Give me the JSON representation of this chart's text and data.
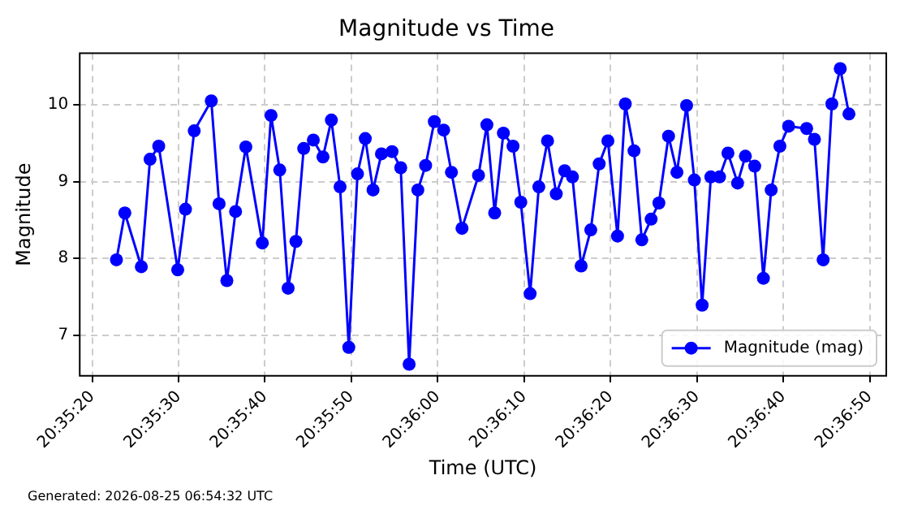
{
  "chart_data": {
    "type": "line",
    "title": "Magnitude vs Time",
    "xlabel": "Time (UTC)",
    "ylabel": "Magnitude",
    "annotations": [
      "Generated: 2026-08-25 06:54:32 UTC"
    ],
    "x": [
      20.58967,
      20.58994,
      20.59047,
      20.59075,
      20.59103,
      20.59164,
      20.59189,
      20.59217,
      20.59272,
      20.59297,
      20.59322,
      20.5935,
      20.59383,
      20.59436,
      20.59464,
      20.59492,
      20.59519,
      20.59544,
      20.59569,
      20.596,
      20.59631,
      20.59658,
      20.59686,
      20.59714,
      20.59742,
      20.59767,
      20.59792,
      20.59819,
      20.59853,
      20.59881,
      20.59908,
      20.59936,
      20.59961,
      20.59989,
      20.60019,
      20.60044,
      20.60078,
      20.60131,
      20.60158,
      20.60183,
      20.60211,
      20.60242,
      20.60267,
      20.60297,
      20.60325,
      20.60353,
      20.60381,
      20.60408,
      20.60433,
      20.60461,
      20.60492,
      20.60519,
      20.60547,
      20.60578,
      20.60603,
      20.60631,
      20.60656,
      20.60686,
      20.60711,
      20.60742,
      20.60769,
      20.608,
      20.60825,
      20.6085,
      20.60878,
      20.60906,
      20.60933,
      20.60964,
      20.60989,
      20.61019,
      20.61047,
      20.61072,
      20.611,
      20.61128,
      20.61186,
      20.61211,
      20.61239,
      20.61267,
      20.61294,
      20.61322
    ],
    "series": [
      {
        "name": "Magnitude (mag)",
        "color": "#0000ff",
        "values": [
          7.98,
          8.59,
          7.89,
          9.29,
          9.46,
          7.85,
          8.64,
          9.66,
          10.05,
          8.71,
          7.71,
          8.61,
          9.45,
          8.2,
          9.86,
          9.15,
          7.61,
          8.22,
          9.43,
          9.54,
          9.32,
          9.8,
          8.93,
          6.84,
          9.1,
          9.56,
          8.89,
          9.36,
          9.39,
          9.18,
          6.62,
          8.89,
          9.21,
          9.78,
          9.67,
          9.12,
          8.39,
          9.08,
          9.74,
          8.59,
          9.63,
          9.46,
          8.73,
          7.54,
          8.93,
          9.53,
          8.84,
          9.14,
          9.06,
          7.9,
          8.37,
          9.23,
          9.53,
          8.29,
          10.01,
          9.4,
          8.24,
          8.51,
          8.72,
          9.59,
          9.12,
          9.99,
          9.02,
          7.39,
          9.06,
          9.06,
          9.37,
          8.98,
          9.33,
          9.2,
          7.74,
          8.89,
          9.46,
          9.72,
          9.69,
          9.55,
          7.98,
          10.01,
          10.47,
          9.88
        ]
      }
    ],
    "xlim": [
      20.58849,
      20.61442
    ],
    "xticks": [
      {
        "value": 20.588889,
        "label": "20:35:20"
      },
      {
        "value": 20.591667,
        "label": "20:35:30"
      },
      {
        "value": 20.594444,
        "label": "20:35:40"
      },
      {
        "value": 20.597222,
        "label": "20:35:50"
      },
      {
        "value": 20.6,
        "label": "20:36:00"
      },
      {
        "value": 20.602778,
        "label": "20:36:10"
      },
      {
        "value": 20.605556,
        "label": "20:36:20"
      },
      {
        "value": 20.608333,
        "label": "20:36:30"
      },
      {
        "value": 20.611111,
        "label": "20:36:40"
      },
      {
        "value": 20.613889,
        "label": "20:36:50"
      }
    ],
    "ylim": [
      6.47,
      10.67
    ],
    "yticks": [
      7,
      8,
      9,
      10
    ],
    "grid": true,
    "legend": "bottom right",
    "marker": "circle",
    "line_style": "solid"
  }
}
